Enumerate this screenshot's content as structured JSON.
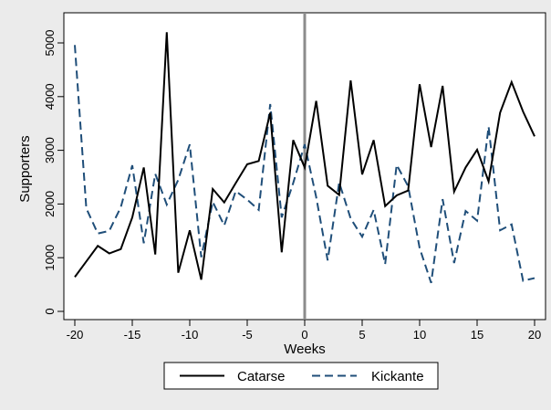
{
  "chart_data": {
    "type": "line",
    "xlabel": "Weeks",
    "ylabel": "Supporters",
    "xlim": [
      -20,
      20
    ],
    "ylim": [
      0,
      5000
    ],
    "x_ticks": [
      -20,
      -15,
      -10,
      -5,
      0,
      5,
      10,
      15,
      20
    ],
    "y_ticks": [
      0,
      1000,
      2000,
      3000,
      4000,
      5000
    ],
    "vertical_reference_line": {
      "x": 0,
      "color": "#8c8c8c"
    },
    "grid": false,
    "legend_position": "bottom",
    "x": [
      -20,
      -19,
      -18,
      -17,
      -16,
      -15,
      -14,
      -13,
      -12,
      -11,
      -10,
      -9,
      -8,
      -7,
      -6,
      -5,
      -4,
      -3,
      -2,
      -1,
      0,
      1,
      2,
      3,
      4,
      5,
      6,
      7,
      8,
      9,
      10,
      11,
      12,
      13,
      14,
      15,
      16,
      17,
      18,
      19,
      20
    ],
    "series": [
      {
        "name": "Catarse",
        "style": "solid",
        "color": "#000000",
        "values": [
          640,
          930,
          1220,
          1080,
          1160,
          1750,
          2680,
          1060,
          5200,
          720,
          1510,
          590,
          2280,
          2030,
          2390,
          2740,
          2800,
          3700,
          1100,
          3190,
          2680,
          3920,
          2340,
          2170,
          4300,
          2550,
          3190,
          1960,
          2160,
          2250,
          4230,
          3060,
          4200,
          2230,
          2680,
          3010,
          2420,
          3700,
          4270,
          3720,
          3260
        ]
      },
      {
        "name": "Kickante",
        "style": "dashed",
        "color": "#1f4e79",
        "values": [
          4960,
          1920,
          1450,
          1500,
          1940,
          2720,
          1270,
          2560,
          1990,
          2450,
          3110,
          1010,
          2040,
          1600,
          2240,
          2080,
          1890,
          3860,
          1750,
          2390,
          3110,
          2130,
          950,
          2400,
          1730,
          1390,
          1890,
          880,
          2730,
          2330,
          1180,
          530,
          2090,
          900,
          1870,
          1690,
          3440,
          1510,
          1620,
          570,
          620
        ]
      }
    ]
  }
}
